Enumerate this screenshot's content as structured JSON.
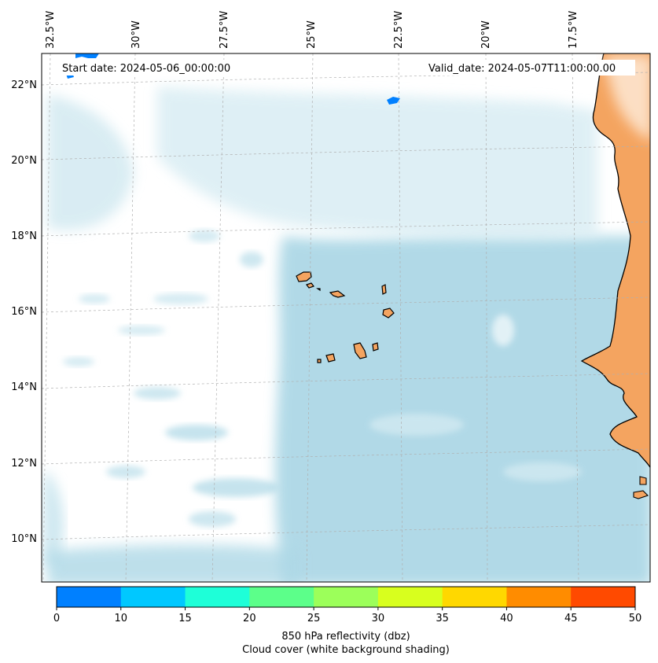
{
  "header": {
    "start_date": "Start date: 2024-05-06_00:00:00",
    "valid_date": "Valid_date: 2024-05-07T11:00:00.00"
  },
  "map": {
    "top_longitude_labels": [
      "32.5°W",
      "30°W",
      "27.5°W",
      "25°W",
      "22.5°W",
      "20°W",
      "17.5°W"
    ],
    "left_latitude_labels": [
      "22°N",
      "20°N",
      "18°N",
      "16°N",
      "14°N",
      "12°N",
      "10°N"
    ],
    "land_color": "#f4a460",
    "cloud_color": "#add8e6",
    "coastline_color": "#000000"
  },
  "colorbar": {
    "ticks": [
      "0",
      "10",
      "15",
      "20",
      "25",
      "30",
      "35",
      "40",
      "45",
      "50"
    ],
    "colors": [
      "#0080ff",
      "#00c8ff",
      "#1effd8",
      "#5cff8a",
      "#9cff5a",
      "#d8ff1e",
      "#ffd800",
      "#ff8c00",
      "#ff4a00"
    ],
    "label_line1": "850 hPa reflectivity (dbz)",
    "label_line2": "Cloud cover (white background shading)"
  }
}
